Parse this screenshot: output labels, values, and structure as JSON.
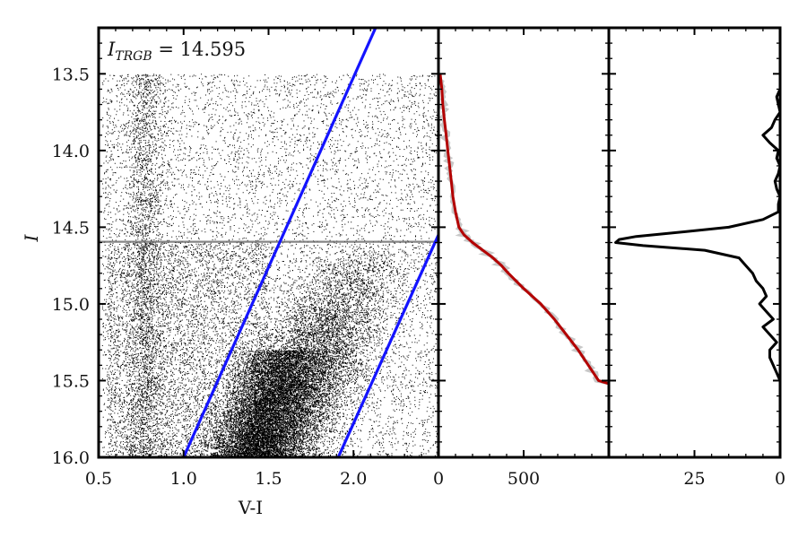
{
  "chart_data": [
    {
      "type": "scatter",
      "panel": "color-magnitude diagram",
      "xlabel": "V-I",
      "ylabel": "I",
      "xlim": [
        0.5,
        2.5
      ],
      "ylim": [
        16.0,
        13.2
      ],
      "xticks": [
        "0.5",
        "1.0",
        "1.5",
        "2.0"
      ],
      "yticks": [
        "13.5",
        "14.0",
        "14.5",
        "15.0",
        "15.5",
        "16.0"
      ],
      "annotation": {
        "prefix": "I",
        "subscript": "TRGB",
        "value": " = 14.595"
      },
      "trgb_line": {
        "y": 14.595,
        "color": "#666666"
      },
      "selection_lines": [
        {
          "x": [
            1.0,
            2.13
          ],
          "y": [
            16.0,
            13.2
          ],
          "color": "#1414ff"
        },
        {
          "x": [
            1.91,
            2.5
          ],
          "y": [
            16.0,
            14.55
          ],
          "color": "#1414ff"
        }
      ],
      "point_top_cutoff": 13.5,
      "point_color": "#000000"
    },
    {
      "type": "line",
      "panel": "luminosity function",
      "xlim": [
        0,
        1000
      ],
      "ylim": [
        16.0,
        13.2
      ],
      "xticks": [
        "0",
        "500"
      ],
      "color": "#b30000",
      "noise_color": "#c8c8c8",
      "y": [
        13.5,
        13.6,
        13.7,
        13.8,
        13.9,
        14.0,
        14.1,
        14.2,
        14.3,
        14.4,
        14.5,
        14.55,
        14.6,
        14.65,
        14.7,
        14.75,
        14.8,
        14.9,
        15.0,
        15.1,
        15.2,
        15.3,
        15.4,
        15.5,
        15.52
      ],
      "x": [
        10,
        20,
        25,
        35,
        45,
        55,
        65,
        75,
        85,
        100,
        120,
        150,
        200,
        260,
        320,
        370,
        410,
        500,
        600,
        680,
        750,
        820,
        880,
        940,
        1000
      ]
    },
    {
      "type": "line",
      "panel": "edge-detection response",
      "xlim": [
        50,
        0
      ],
      "ylim": [
        16.0,
        13.2
      ],
      "xticks": [
        "25",
        "0"
      ],
      "color": "#000000",
      "y": [
        13.6,
        13.65,
        13.7,
        13.75,
        13.8,
        13.85,
        13.9,
        13.95,
        14.0,
        14.05,
        14.1,
        14.15,
        14.2,
        14.25,
        14.3,
        14.35,
        14.4,
        14.45,
        14.5,
        14.53,
        14.56,
        14.58,
        14.6,
        14.62,
        14.65,
        14.7,
        14.75,
        14.8,
        14.85,
        14.9,
        14.95,
        15.0,
        15.05,
        15.1,
        15.15,
        15.2,
        15.25,
        15.3,
        15.35,
        15.4,
        15.45,
        15.5
      ],
      "x": [
        0,
        1,
        0.5,
        0,
        1.5,
        2.5,
        5,
        3,
        0.5,
        1,
        0,
        0.5,
        1.5,
        1,
        0,
        0.5,
        0.5,
        5,
        15,
        28,
        42,
        47,
        48,
        40,
        22,
        12,
        10,
        8,
        7,
        5,
        4,
        6,
        4,
        2,
        5,
        3,
        1,
        3,
        3,
        2,
        1,
        0
      ]
    }
  ]
}
